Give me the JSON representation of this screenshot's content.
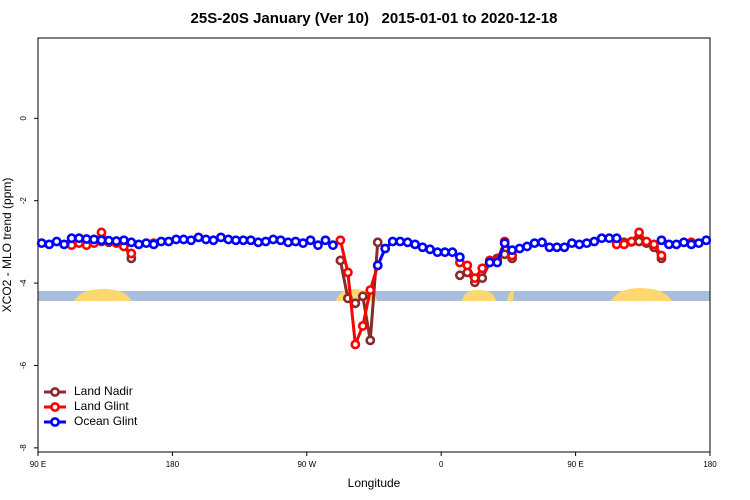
{
  "chart_data": {
    "type": "line",
    "title": "25S-20S January (Ver 10)   2015-01-01 to 2020-12-18",
    "x_label": "Longitude",
    "y_label": "XCO2 - MLO trend (ppm)",
    "xlim": [
      90,
      540
    ],
    "ylim": [
      -8.1,
      1.95
    ],
    "xticks": [
      {
        "value": 90,
        "label": "90 E"
      },
      {
        "value": 180,
        "label": "180"
      },
      {
        "value": 270,
        "label": "90 W"
      },
      {
        "value": 360,
        "label": "0"
      },
      {
        "value": 450,
        "label": "90 E"
      },
      {
        "value": 540,
        "label": "180"
      }
    ],
    "yticks": [
      0,
      -2,
      -4,
      -6,
      -8
    ],
    "legend_position": "bottom-left",
    "x": [
      92.5,
      97.5,
      102.5,
      107.5,
      112.5,
      117.5,
      122.5,
      127.5,
      132.5,
      137.5,
      142.5,
      147.5,
      152.5,
      157.5,
      162.5,
      167.5,
      172.5,
      177.5,
      182.5,
      187.5,
      192.5,
      197.5,
      202.5,
      207.5,
      212.5,
      217.5,
      222.5,
      227.5,
      232.5,
      237.5,
      242.5,
      247.5,
      252.5,
      257.5,
      262.5,
      267.5,
      272.5,
      277.5,
      282.5,
      287.5,
      292.5,
      297.5,
      302.5,
      307.5,
      312.5,
      317.5,
      322.5,
      327.5,
      332.5,
      337.5,
      342.5,
      347.5,
      352.5,
      357.5,
      362.5,
      367.5,
      372.5,
      377.5,
      382.5,
      387.5,
      392.5,
      397.5,
      402.5,
      407.5,
      412.5,
      417.5,
      422.5,
      427.5,
      432.5,
      437.5,
      442.5,
      447.5,
      452.5,
      457.5,
      462.5,
      467.5,
      472.5,
      477.5,
      482.5,
      487.5,
      492.5,
      497.5,
      502.5,
      507.5,
      512.5,
      517.5,
      522.5,
      527.5,
      532.5,
      537.5
    ],
    "series": [
      {
        "name": "Land Nadir",
        "color": "#8b2a2a",
        "values": [
          null,
          null,
          null,
          null,
          -3.06,
          null,
          -3.01,
          -3.0,
          -2.99,
          -3.01,
          -3.01,
          -3.06,
          -3.4,
          null,
          null,
          null,
          null,
          null,
          null,
          null,
          null,
          null,
          null,
          null,
          null,
          null,
          null,
          null,
          null,
          null,
          null,
          null,
          null,
          null,
          null,
          null,
          null,
          null,
          null,
          null,
          -3.45,
          -4.37,
          -4.49,
          -4.32,
          -5.39,
          -3.01,
          null,
          null,
          null,
          null,
          null,
          null,
          null,
          null,
          null,
          null,
          -3.81,
          -3.74,
          -3.98,
          -3.88,
          -3.5,
          -3.4,
          -3.3,
          -3.4,
          null,
          null,
          null,
          null,
          null,
          null,
          null,
          null,
          null,
          null,
          null,
          null,
          null,
          -3.03,
          -3.01,
          -3.0,
          -2.99,
          -3.03,
          -3.13,
          -3.4,
          null,
          null,
          null,
          null,
          null,
          null
        ]
      },
      {
        "name": "Land Glint",
        "color": "#ff0000",
        "values": [
          null,
          null,
          null,
          null,
          -3.08,
          -3.03,
          -3.08,
          -3.03,
          -2.77,
          -2.99,
          -3.03,
          -3.11,
          -3.28,
          null,
          null,
          -3.03,
          null,
          null,
          null,
          null,
          null,
          null,
          null,
          null,
          null,
          null,
          null,
          null,
          null,
          null,
          null,
          null,
          null,
          null,
          null,
          null,
          null,
          null,
          null,
          null,
          -2.96,
          -3.74,
          -5.49,
          -5.04,
          -4.17,
          -3.57,
          null,
          null,
          null,
          null,
          null,
          null,
          null,
          null,
          null,
          null,
          -3.5,
          -3.57,
          -3.88,
          -3.64,
          -3.45,
          -3.45,
          -2.99,
          -3.33,
          null,
          null,
          null,
          null,
          null,
          null,
          null,
          null,
          null,
          null,
          null,
          null,
          null,
          -3.06,
          -3.06,
          -2.99,
          -2.77,
          -2.99,
          -3.06,
          -3.33,
          null,
          null,
          null,
          -3.01,
          null,
          null
        ]
      },
      {
        "name": "Ocean Glint",
        "color": "#0000ff",
        "values": [
          -3.03,
          -3.06,
          -2.99,
          -3.06,
          -2.91,
          -2.91,
          -2.93,
          -2.94,
          -2.96,
          -2.97,
          -2.98,
          -2.96,
          -3.01,
          -3.06,
          -3.03,
          -3.06,
          -2.99,
          -2.99,
          -2.94,
          -2.94,
          -2.96,
          -2.89,
          -2.94,
          -2.96,
          -2.89,
          -2.94,
          -2.96,
          -2.96,
          -2.96,
          -3.01,
          -2.99,
          -2.94,
          -2.96,
          -3.01,
          -2.99,
          -3.03,
          -2.96,
          -3.08,
          -2.96,
          -3.08,
          null,
          null,
          null,
          null,
          null,
          -3.57,
          -3.16,
          -2.99,
          -2.99,
          -3.01,
          -3.06,
          -3.13,
          -3.18,
          -3.25,
          -3.25,
          -3.25,
          -3.37,
          null,
          null,
          null,
          -3.5,
          -3.5,
          -3.03,
          -3.2,
          -3.16,
          -3.11,
          -3.03,
          -3.01,
          -3.13,
          -3.13,
          -3.13,
          -3.03,
          -3.06,
          -3.03,
          -2.99,
          -2.91,
          -2.91,
          -2.91,
          null,
          null,
          null,
          null,
          null,
          -2.96,
          -3.06,
          -3.06,
          -3.01,
          -3.06,
          -3.03,
          -2.96
        ]
      }
    ]
  }
}
